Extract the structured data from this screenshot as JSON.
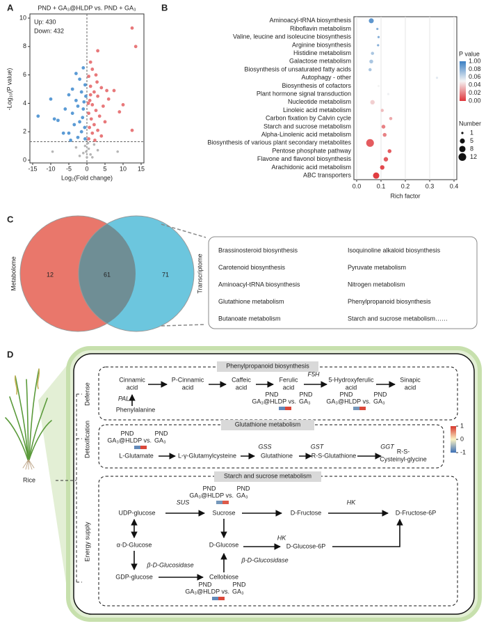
{
  "panel_labels": [
    "A",
    "B",
    "C",
    "D"
  ],
  "chart_data": [
    {
      "type": "scatter",
      "title": "PND + GA₃@HLDP vs. PND + GA₃",
      "xlabel": "Log₂(Fold change)",
      "ylabel": "-Log₁₀(P value)",
      "xlim": [
        -15,
        15
      ],
      "xticks": [
        -15,
        -10,
        -5,
        0,
        5,
        10,
        15
      ],
      "ylim": [
        0,
        10
      ],
      "yticks": [
        0,
        2,
        4,
        6,
        8,
        10
      ],
      "hlines": [
        1.3
      ],
      "vlines": [
        0
      ],
      "series": [
        {
          "name": "Up: 430",
          "color": "#e8787a",
          "x": [
            12.5,
            13.5,
            3,
            1,
            1.5,
            2.5,
            0.5,
            4,
            5.5,
            7.5,
            1,
            2,
            3,
            6,
            0.8,
            1.5,
            4.5,
            2.5,
            0.5,
            10,
            3.5,
            1.2,
            5,
            2,
            0.7,
            3,
            12.5,
            1.5,
            4,
            0.5,
            2.2,
            9,
            1,
            0.4,
            2.8
          ],
          "values": [
            9.3,
            8,
            7.7,
            6.9,
            6.4,
            6,
            5.9,
            5.1,
            4.9,
            4.9,
            5.2,
            4.8,
            4.5,
            4.3,
            4.2,
            3.9,
            3.8,
            3.5,
            3.3,
            3.9,
            3.1,
            2.9,
            2.7,
            2.5,
            2.3,
            2.1,
            2.1,
            1.9,
            1.7,
            1.5,
            1.4,
            3.4,
            4.6,
            4.0,
            5.5
          ]
        },
        {
          "name": "Down: 432",
          "color": "#5b9bd5",
          "x": [
            -1,
            -3,
            -2,
            -0.5,
            -4,
            -1.5,
            -5,
            -3,
            -0.8,
            -2.5,
            -6,
            -10,
            -13.5,
            -4,
            -1.2,
            -2,
            -8,
            -3.5,
            -0.6,
            -1.5,
            -5,
            -2.5,
            -0.5,
            -4.5,
            -9,
            -6.5,
            -1,
            -0.3
          ],
          "values": [
            6.5,
            6.1,
            5.7,
            5.3,
            5,
            4.8,
            4.6,
            4.2,
            4.1,
            3.8,
            3.6,
            4.3,
            3.1,
            3.3,
            3.0,
            2.7,
            2.8,
            2.5,
            2.3,
            2.0,
            1.9,
            1.6,
            1.5,
            1.4,
            2.9,
            1.9,
            3.6,
            4.5
          ]
        },
        {
          "color": "#b5b5b5",
          "x": [
            -9.5,
            -3,
            -1,
            -0.5,
            0,
            0.5,
            1,
            2,
            3,
            8.5,
            -2,
            0.3,
            -0.2,
            1.5
          ],
          "values": [
            0.6,
            0.9,
            0.5,
            1.0,
            0.2,
            0.8,
            0.4,
            1.1,
            0.7,
            0.6,
            0.3,
            1.2,
            0.6,
            0.2
          ]
        }
      ]
    },
    {
      "type": "bubble",
      "xlabel": "Rich factor",
      "categories": [
        "Aminoacyl-tRNA biosynthesis",
        "Riboflavin metabolism",
        "Valine, leucine and isoleucine biosynthesis",
        "Arginine biosynthesis",
        "Histidine metabolism",
        "Galactose metabolism",
        "Biosynthesis of unsaturated fatty acids",
        "Autophagy - other",
        "Biosynthesis of cofactors",
        "Plant hormone signal transduction",
        "Nucleotide metabolism",
        "Linoleic acid metabolism",
        "Carbon fixation by Calvin cycle",
        "Starch and sucrose metabolism",
        "Alpha-Linolenic acid metabolism",
        "Biosynthesis of various plant secondary metabolites",
        "Pentose phosphate pathway",
        "Flavone and flavonol biosynthesis",
        "Arachidonic acid metabolism",
        "ABC transporters"
      ],
      "values": [
        0.06,
        0.085,
        0.09,
        0.088,
        0.065,
        0.06,
        0.055,
        0.33,
        0.09,
        0.13,
        0.065,
        0.105,
        0.14,
        0.11,
        0.115,
        0.055,
        0.135,
        0.12,
        0.105,
        0.08
      ],
      "sizes": [
        5,
        1,
        1,
        1,
        2,
        3,
        2,
        1,
        1,
        1,
        4,
        2,
        2,
        3,
        3,
        12,
        3,
        4,
        4,
        8
      ],
      "pvalues": [
        0.09,
        0.08,
        0.08,
        0.08,
        0.07,
        0.07,
        0.07,
        0.055,
        0.05,
        0.052,
        0.04,
        0.035,
        0.03,
        0.02,
        0.02,
        0.01,
        0.01,
        0.01,
        0.005,
        0.002
      ],
      "xlim": [
        0,
        0.4
      ],
      "xticks": [
        {
          "value": 0,
          "label": "0.0"
        },
        0.1,
        0.2,
        0.3,
        0.4
      ],
      "grid": true,
      "clim": [
        0,
        0.1
      ],
      "color_scale": [
        "#e0353a",
        "#f5f5f5",
        "#3a7fc4"
      ],
      "color_title": "P value",
      "color_labels": [
        "1.00",
        "0.08",
        "0.06",
        "0.04",
        "0.02",
        "0.00"
      ],
      "size_title": "Number",
      "size_legend": [
        1,
        5,
        8,
        12
      ]
    }
  ],
  "venn": {
    "sets": [
      {
        "label": "Metabolome",
        "only": 12
      },
      {
        "label": "Transcriptome",
        "only": 71
      }
    ],
    "intersection": 61,
    "pathways": [
      "Brassinosteroid biosynthesis",
      "Carotenoid biosynthesis",
      "Aminoacyl-tRNA biosynthesis",
      "Glutathione metabolism",
      "Butanoate metabolism",
      "Isoquinoline alkaloid biosynthesis",
      "Pyruvate metabolism",
      "Nitrogen metabolism",
      "Phenylpropanoid biosynthesis",
      "Starch and sucrose metabolism……"
    ]
  },
  "pathway": {
    "organism": "Rice",
    "sections": [
      {
        "title": "Phenylpropanoid biosynthesis",
        "side": "Defense"
      },
      {
        "title": "Glutathione metabolism",
        "side": "Detoxification"
      },
      {
        "title": "Starch and sucrose metabolism",
        "side": "Energy supply"
      }
    ],
    "nodes": [
      [
        "Cinnamic",
        "acid"
      ],
      [
        "P-Cinnamic",
        "acid"
      ],
      [
        "Caffeic",
        "acid"
      ],
      [
        "Ferulic",
        "acid"
      ],
      [
        "5-Hydroxyferulic",
        "acid"
      ],
      [
        "Sinapic",
        "acid"
      ],
      [
        "Phenylalanine"
      ],
      [
        "L-Glutamate"
      ],
      [
        "L-γ-Glutamylcysteine"
      ],
      [
        "Glutathione"
      ],
      [
        "R-S-Glutathione"
      ],
      [
        "R-S-",
        "Cysteinyl-glycine"
      ],
      [
        "UDP-glucose"
      ],
      [
        "Sucrose"
      ],
      [
        "D-Fructose"
      ],
      [
        "D-Fructose-6P"
      ],
      [
        "α-D-Glucose"
      ],
      [
        "D-Glucose"
      ],
      [
        "D-Glucose-6P"
      ],
      [
        "GDP-glucose"
      ],
      [
        "Cellobiose"
      ]
    ],
    "enzymes": [
      "PAL",
      "F5H",
      "GSS",
      "GST",
      "GGT",
      "SUS",
      "HK",
      "HK",
      "β-D-Glucosidase",
      "β-D-Glucosidase"
    ],
    "comparison": [
      "PND",
      "GA₃@HLDP vs.",
      "PND",
      "GA₃"
    ],
    "heatmaps": [
      [
        -0.8,
        0.9
      ],
      [
        -0.7,
        0.9
      ],
      [
        -0.8,
        0.9
      ],
      [
        -0.7,
        0.8
      ],
      [
        -0.8,
        0.9
      ]
    ],
    "clim": [
      -1,
      1
    ],
    "colorbar_ticks": [
      1,
      0,
      -1
    ],
    "color_scale": [
      "#3c6fb6",
      "#fbf3c4",
      "#d7352b"
    ]
  }
}
